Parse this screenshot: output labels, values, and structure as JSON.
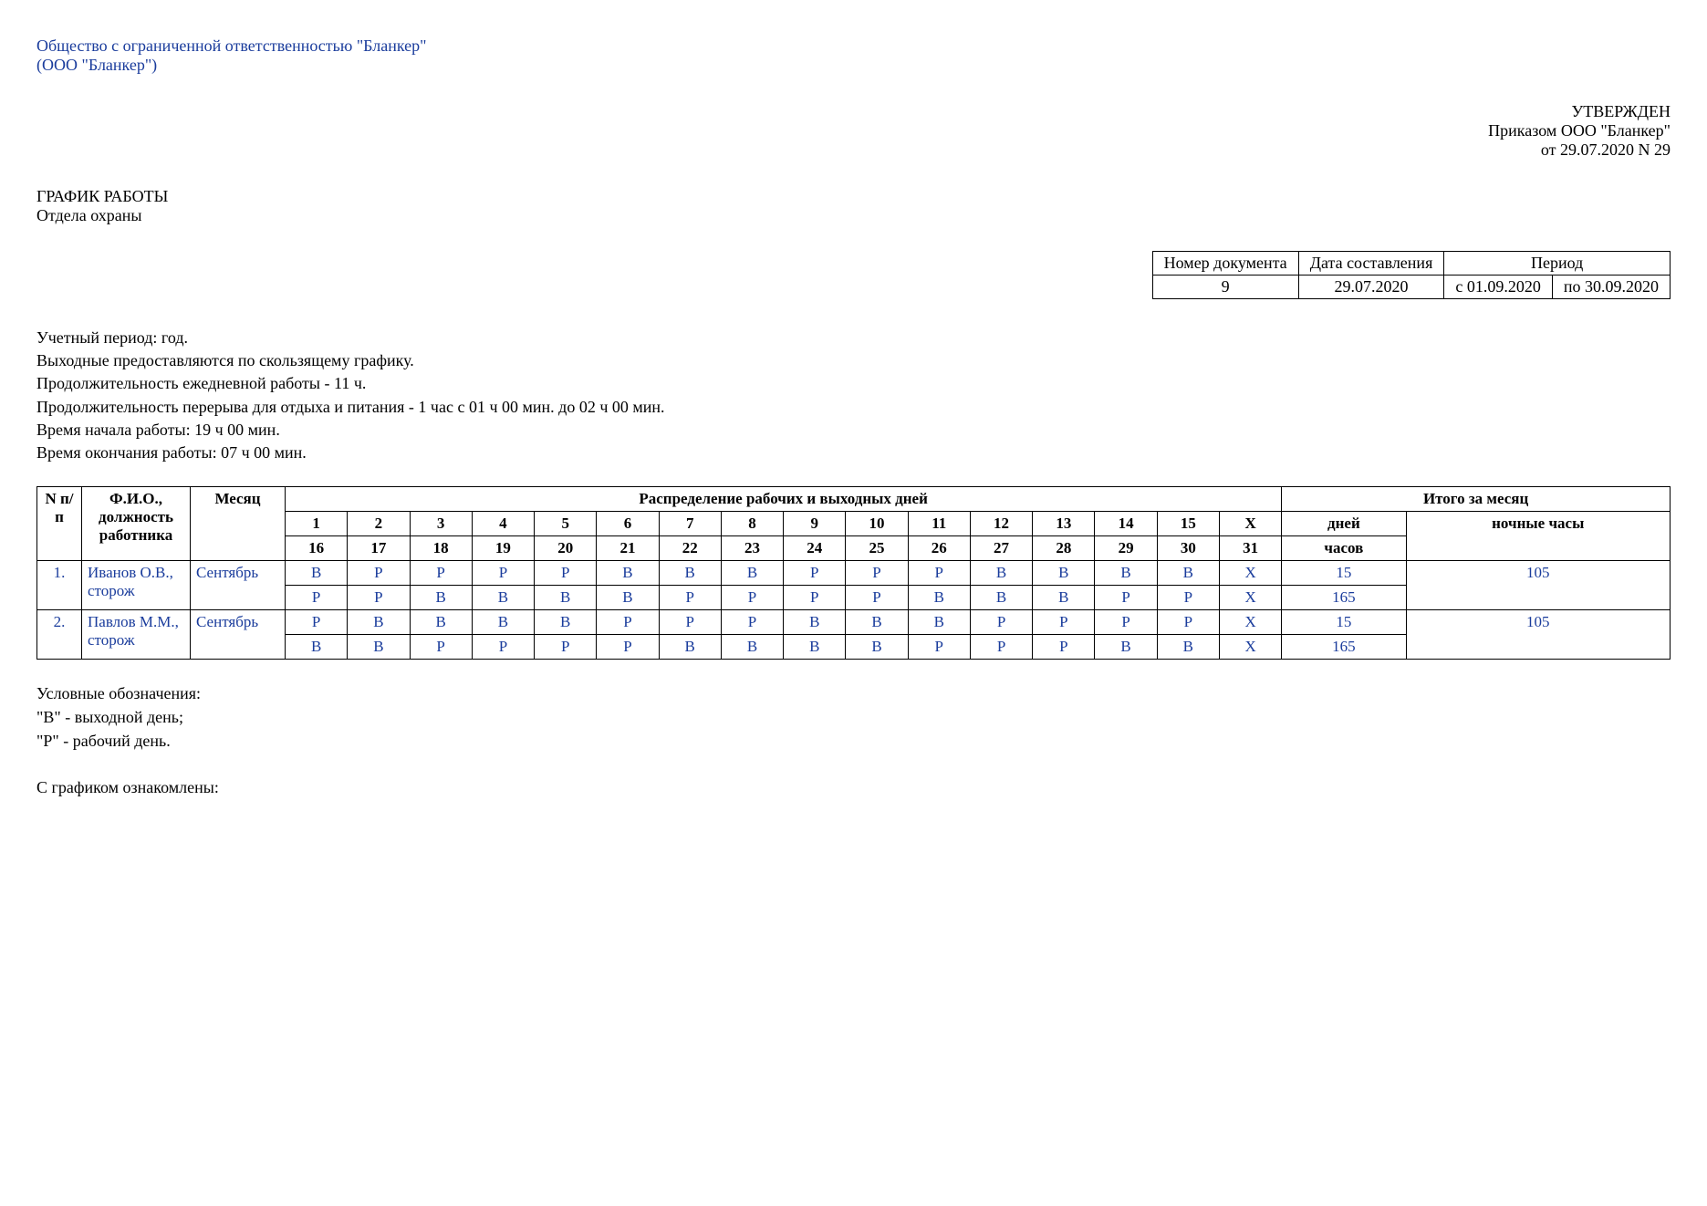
{
  "org": {
    "full_name": "Общество с ограниченной ответственностью \"Бланкер\"",
    "short_name": "(ООО \"Бланкер\")"
  },
  "approval": {
    "approved": "УТВЕРЖДЕН",
    "by": "Приказом ООО \"Бланкер\"",
    "date_no": "от 29.07.2020 N 29"
  },
  "title": {
    "line1": "ГРАФИК РАБОТЫ",
    "line2": "Отдела охраны"
  },
  "meta": {
    "headers": {
      "doc_no": "Номер документа",
      "date": "Дата составления",
      "period": "Период"
    },
    "doc_no": "9",
    "date": "29.07.2020",
    "period_from": "с 01.09.2020",
    "period_to": "по 30.09.2020"
  },
  "notes": {
    "n1": "Учетный период: год.",
    "n2": "Выходные предоставляются по скользящему графику.",
    "n3": "Продолжительность ежедневной работы - 11 ч.",
    "n4": "Продолжительность перерыва для отдыха и питания - 1 час с 01 ч 00 мин. до 02 ч 00 мин.",
    "n5": "Время начала работы: 19 ч 00 мин.",
    "n6": "Время окончания работы: 07 ч 00 мин."
  },
  "schedule": {
    "headers": {
      "npp": "N п/п",
      "fio": "Ф.И.О., должность работника",
      "month": "Месяц",
      "distribution": "Распределение рабочих и выходных дней",
      "total": "Итого за месяц",
      "days_col": "дней",
      "night_hours": "ночные часы",
      "hours_col": "часов"
    },
    "day_headers_top": [
      "1",
      "2",
      "3",
      "4",
      "5",
      "6",
      "7",
      "8",
      "9",
      "10",
      "11",
      "12",
      "13",
      "14",
      "15",
      "X"
    ],
    "day_headers_bot": [
      "16",
      "17",
      "18",
      "19",
      "20",
      "21",
      "22",
      "23",
      "24",
      "25",
      "26",
      "27",
      "28",
      "29",
      "30",
      "31"
    ],
    "rows": [
      {
        "n": "1.",
        "fio": "Иванов О.В., сторож",
        "month": "Сентябрь",
        "line1": [
          "В",
          "Р",
          "Р",
          "Р",
          "Р",
          "В",
          "В",
          "В",
          "Р",
          "Р",
          "Р",
          "В",
          "В",
          "В",
          "В",
          "X"
        ],
        "line1_days": "15",
        "night_hours": "105",
        "line2": [
          "Р",
          "Р",
          "В",
          "В",
          "В",
          "В",
          "Р",
          "Р",
          "Р",
          "Р",
          "В",
          "В",
          "В",
          "Р",
          "Р",
          "X"
        ],
        "line2_hours": "165"
      },
      {
        "n": "2.",
        "fio": "Павлов М.М., сторож",
        "month": "Сентябрь",
        "line1": [
          "Р",
          "В",
          "В",
          "В",
          "В",
          "Р",
          "Р",
          "Р",
          "В",
          "В",
          "В",
          "Р",
          "Р",
          "Р",
          "Р",
          "X"
        ],
        "line1_days": "15",
        "night_hours": "105",
        "line2": [
          "В",
          "В",
          "Р",
          "Р",
          "Р",
          "Р",
          "В",
          "В",
          "В",
          "В",
          "Р",
          "Р",
          "Р",
          "В",
          "В",
          "X"
        ],
        "line2_hours": "165"
      }
    ]
  },
  "legend": {
    "title": "Условные обозначения:",
    "v": "\"В\" - выходной день;",
    "r": "\"Р\" - рабочий день."
  },
  "footer": "С графиком ознакомлены:",
  "colors": {
    "text_blue": "#1a3c9c",
    "border": "#000000",
    "bg": "#ffffff"
  }
}
